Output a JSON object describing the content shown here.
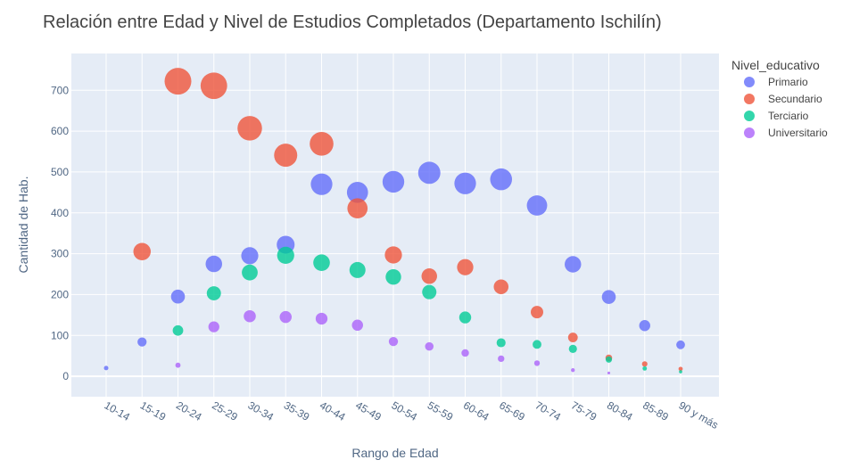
{
  "chart_data": {
    "type": "scatter",
    "title": "Relación entre Edad y Nivel de Estudios Completados (Departamento Ischilín)",
    "xlabel": "Rango de Edad",
    "ylabel": "Cantidad de Hab.",
    "categories": [
      "10-14",
      "15-19",
      "20-24",
      "25-29",
      "30-34",
      "35-39",
      "40-44",
      "45-49",
      "50-54",
      "55-59",
      "60-64",
      "65-69",
      "70-74",
      "75-79",
      "80-84",
      "85-89",
      "90 y más"
    ],
    "ylim": [
      -50,
      790
    ],
    "yticks": [
      0,
      100,
      200,
      300,
      400,
      500,
      600,
      700
    ],
    "grid": true,
    "legend": {
      "title": "Nivel_educativo",
      "placement": "right"
    },
    "marker_size_encodes": "y value",
    "series": [
      {
        "name": "Primario",
        "color": "#636efa",
        "values": [
          20,
          84,
          195,
          275,
          295,
          322,
          470,
          450,
          476,
          498,
          472,
          482,
          418,
          274,
          194,
          124,
          77
        ]
      },
      {
        "name": "Secundario",
        "color": "#EF553B",
        "values": [
          null,
          305,
          722,
          711,
          607,
          541,
          569,
          411,
          297,
          245,
          267,
          219,
          157,
          95,
          45,
          30,
          18
        ]
      },
      {
        "name": "Terciario",
        "color": "#00cc96",
        "values": [
          null,
          null,
          112,
          203,
          254,
          296,
          278,
          260,
          243,
          206,
          144,
          82,
          78,
          67,
          41,
          19,
          11
        ]
      },
      {
        "name": "Universitario",
        "color": "#ab63fa",
        "values": [
          null,
          null,
          27,
          121,
          147,
          145,
          141,
          125,
          85,
          73,
          57,
          43,
          32,
          15,
          8,
          null,
          null
        ]
      }
    ]
  }
}
